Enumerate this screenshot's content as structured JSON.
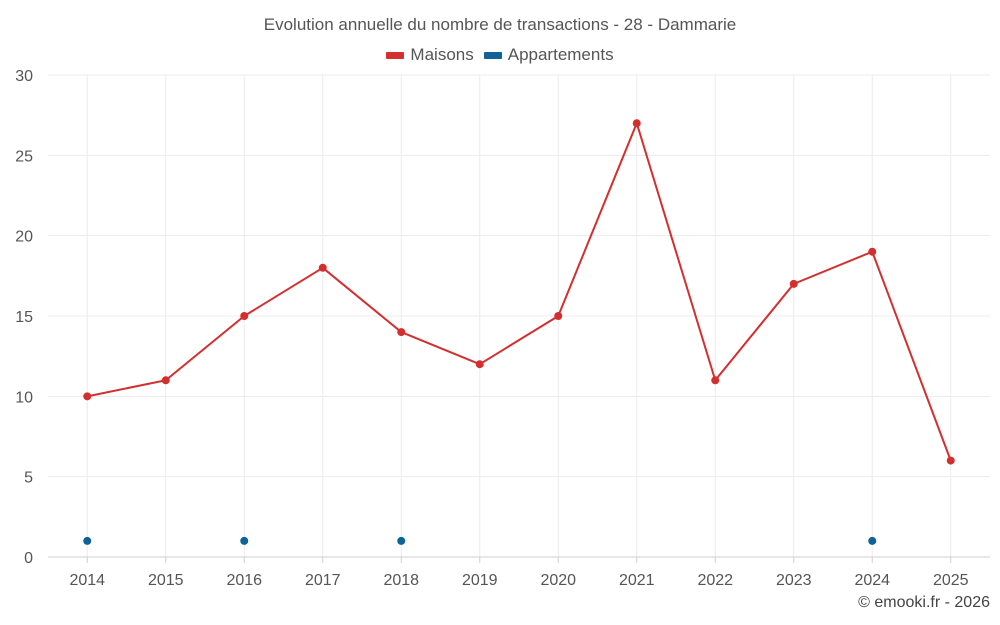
{
  "chart_data": {
    "type": "line",
    "title": "Evolution annuelle du nombre de transactions - 28 - Dammarie",
    "categories": [
      "2014",
      "2015",
      "2016",
      "2017",
      "2018",
      "2019",
      "2020",
      "2021",
      "2022",
      "2023",
      "2024",
      "2025"
    ],
    "ylim": [
      0,
      30
    ],
    "yticks": [
      "0",
      "5",
      "10",
      "15",
      "20",
      "25",
      "30"
    ],
    "grid": true,
    "legend_position": "top-center",
    "xlabel": "",
    "ylabel": "",
    "series": [
      {
        "name": "Maisons",
        "color": "#d32f2f",
        "line": true,
        "values": [
          10,
          11,
          15,
          18,
          14,
          12,
          15,
          27,
          11,
          17,
          19,
          6
        ]
      },
      {
        "name": "Appartements",
        "color": "#0d6396",
        "line": false,
        "values": [
          1,
          null,
          1,
          null,
          1,
          null,
          null,
          null,
          null,
          null,
          1,
          null
        ]
      }
    ]
  },
  "credit": "© emooki.fr - 2026"
}
